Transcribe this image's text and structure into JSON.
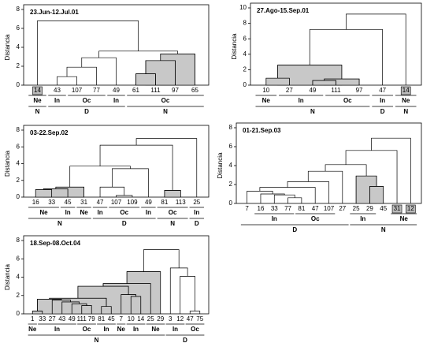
{
  "chart_data": [
    {
      "type": "dendrogram",
      "title": "23.Jun-12.Jul.01",
      "y_label": "Distancia",
      "ylim": [
        0,
        8
      ],
      "yticks": [
        0,
        2,
        4,
        6,
        8
      ],
      "leaves": [
        "14",
        "43",
        "107",
        "77",
        "49",
        "61",
        "111",
        "97",
        "65"
      ],
      "boxed": [
        0
      ],
      "merges": [
        {
          "left": 1,
          "right": 2,
          "height": 0.9,
          "shaded": false
        },
        {
          "left": 9,
          "right": 3,
          "height": 1.9,
          "shaded": false
        },
        {
          "left": 10,
          "right": 4,
          "height": 2.9,
          "shaded": false
        },
        {
          "left": 5,
          "right": 6,
          "height": 1.2,
          "shaded": true
        },
        {
          "left": 12,
          "right": 7,
          "height": 2.6,
          "shaded": true
        },
        {
          "left": 13,
          "right": 8,
          "height": 3.3,
          "shaded": true
        },
        {
          "left": 11,
          "right": 14,
          "height": 3.6,
          "shaded": false
        },
        {
          "left": 0,
          "right": 15,
          "height": 6.8,
          "shaded": false
        }
      ],
      "groups": [
        [
          {
            "label": "Ne",
            "from": 0,
            "to": 0
          },
          {
            "label": "In",
            "from": 1,
            "to": 1
          },
          {
            "label": "Oc",
            "from": 2,
            "to": 3
          },
          {
            "label": "In",
            "from": 4,
            "to": 4
          },
          {
            "label": "Oc",
            "from": 5,
            "to": 8
          }
        ],
        [
          {
            "label": "N",
            "from": 0,
            "to": 0
          },
          {
            "label": "D",
            "from": 1,
            "to": 4
          },
          {
            "label": "N",
            "from": 5,
            "to": 8
          }
        ]
      ]
    },
    {
      "type": "dendrogram",
      "title": "27.Ago-15.Sep.01",
      "y_label": "Distancia",
      "ylim": [
        0,
        10
      ],
      "yticks": [
        0,
        2,
        4,
        6,
        8,
        10
      ],
      "leaves": [
        "10",
        "27",
        "49",
        "111",
        "97",
        "47",
        "14"
      ],
      "boxed": [
        6
      ],
      "merges": [
        {
          "left": 0,
          "right": 1,
          "height": 0.9,
          "shaded": true
        },
        {
          "left": 2,
          "right": 3,
          "height": 0.6,
          "shaded": true
        },
        {
          "left": 8,
          "right": 4,
          "height": 0.8,
          "shaded": true
        },
        {
          "left": 7,
          "right": 9,
          "height": 2.6,
          "shaded": true
        },
        {
          "left": 10,
          "right": 5,
          "height": 7.2,
          "shaded": false
        },
        {
          "left": 11,
          "right": 6,
          "height": 9.2,
          "shaded": false
        }
      ],
      "groups": [
        [
          {
            "label": "Ne",
            "from": 0,
            "to": 0
          },
          {
            "label": "In",
            "from": 1,
            "to": 2
          },
          {
            "label": "Oc",
            "from": 3,
            "to": 4
          },
          {
            "label": "In",
            "from": 5,
            "to": 5
          },
          {
            "label": "Ne",
            "from": 6,
            "to": 6
          }
        ],
        [
          {
            "label": "N",
            "from": 0,
            "to": 4
          },
          {
            "label": "D",
            "from": 5,
            "to": 5
          },
          {
            "label": "N",
            "from": 6,
            "to": 6
          }
        ]
      ]
    },
    {
      "type": "dendrogram",
      "title": "03-22.Sep.02",
      "y_label": "Distancia",
      "ylim": [
        0,
        8
      ],
      "yticks": [
        0,
        2,
        4,
        6,
        8
      ],
      "leaves": [
        "16",
        "33",
        "45",
        "31",
        "47",
        "107",
        "109",
        "49",
        "81",
        "113",
        "25"
      ],
      "boxed": [],
      "merges": [
        {
          "left": 0,
          "right": 1,
          "height": 0.9,
          "shaded": true
        },
        {
          "left": 11,
          "right": 2,
          "height": 1.0,
          "shaded": true
        },
        {
          "left": 12,
          "right": 3,
          "height": 1.2,
          "shaded": true
        },
        {
          "left": 5,
          "right": 6,
          "height": 0.2,
          "shaded": false
        },
        {
          "left": 4,
          "right": 14,
          "height": 1.2,
          "shaded": false
        },
        {
          "left": 15,
          "right": 7,
          "height": 3.4,
          "shaded": false
        },
        {
          "left": 13,
          "right": 16,
          "height": 3.7,
          "shaded": false
        },
        {
          "left": 8,
          "right": 9,
          "height": 0.8,
          "shaded": true
        },
        {
          "left": 17,
          "right": 18,
          "height": 6.2,
          "shaded": false
        },
        {
          "left": 19,
          "right": 10,
          "height": 7.0,
          "shaded": false
        }
      ],
      "groups": [
        [
          {
            "label": "Ne",
            "from": 0,
            "to": 1
          },
          {
            "label": "In",
            "from": 2,
            "to": 2
          },
          {
            "label": "Ne",
            "from": 3,
            "to": 3
          },
          {
            "label": "In",
            "from": 4,
            "to": 4
          },
          {
            "label": "Oc",
            "from": 5,
            "to": 6
          },
          {
            "label": "In",
            "from": 7,
            "to": 7
          },
          {
            "label": "Oc",
            "from": 8,
            "to": 9
          },
          {
            "label": "In",
            "from": 10,
            "to": 10
          }
        ],
        [
          {
            "label": "N",
            "from": 0,
            "to": 3
          },
          {
            "label": "D",
            "from": 4,
            "to": 7
          },
          {
            "label": "N",
            "from": 8,
            "to": 9
          },
          {
            "label": "D",
            "from": 10,
            "to": 10
          }
        ]
      ]
    },
    {
      "type": "dendrogram",
      "title": "01-21.Sep.03",
      "y_label": "Distancia",
      "ylim": [
        0,
        8
      ],
      "yticks": [
        0,
        2,
        4,
        6,
        8
      ],
      "leaves": [
        "7",
        "16",
        "33",
        "77",
        "81",
        "47",
        "107",
        "27",
        "25",
        "29",
        "45",
        "31",
        "12"
      ],
      "boxed": [
        11,
        12
      ],
      "merges": [
        {
          "left": 3,
          "right": 4,
          "height": 0.6,
          "shaded": false
        },
        {
          "left": 2,
          "right": 13,
          "height": 0.9,
          "shaded": false
        },
        {
          "left": 1,
          "right": 14,
          "height": 1.0,
          "shaded": false
        },
        {
          "left": 0,
          "right": 15,
          "height": 1.3,
          "shaded": false
        },
        {
          "left": 16,
          "right": 5,
          "height": 1.7,
          "shaded": false
        },
        {
          "left": 17,
          "right": 6,
          "height": 2.3,
          "shaded": false
        },
        {
          "left": 18,
          "right": 7,
          "height": 3.4,
          "shaded": false
        },
        {
          "left": 9,
          "right": 10,
          "height": 1.8,
          "shaded": true
        },
        {
          "left": 8,
          "right": 20,
          "height": 2.9,
          "shaded": true
        },
        {
          "left": 19,
          "right": 21,
          "height": 4.1,
          "shaded": false
        },
        {
          "left": 22,
          "right": 11,
          "height": 5.6,
          "shaded": false
        },
        {
          "left": 23,
          "right": 12,
          "height": 6.9,
          "shaded": false
        }
      ],
      "groups": [
        [
          {
            "label": "In",
            "from": 1,
            "to": 3
          },
          {
            "label": "Oc",
            "from": 4,
            "to": 6
          },
          {
            "label": "In",
            "from": 8,
            "to": 9
          },
          {
            "label": "Ne",
            "from": 11,
            "to": 12
          }
        ],
        [
          {
            "label": "D",
            "from": 0,
            "to": 7
          },
          {
            "label": "N",
            "from": 8,
            "to": 12
          }
        ]
      ]
    },
    {
      "type": "dendrogram",
      "title": "18.Sep-08.Oct.04",
      "y_label": "Distancia",
      "ylim": [
        0,
        8
      ],
      "yticks": [
        0,
        2,
        4,
        6,
        8
      ],
      "leaves": [
        "1",
        "33",
        "27",
        "43",
        "49",
        "111",
        "79",
        "81",
        "45",
        "7",
        "10",
        "14",
        "25",
        "29",
        "3",
        "12",
        "47",
        "75"
      ],
      "boxed": [],
      "merges": [
        {
          "left": 0,
          "right": 1,
          "height": 0.3,
          "shaded": true
        },
        {
          "left": 5,
          "right": 6,
          "height": 0.9,
          "shaded": true
        },
        {
          "left": 4,
          "right": 19,
          "height": 1.1,
          "shaded": true
        },
        {
          "left": 3,
          "right": 20,
          "height": 1.3,
          "shaded": true
        },
        {
          "left": 2,
          "right": 21,
          "height": 1.5,
          "shaded": true
        },
        {
          "left": 18,
          "right": 22,
          "height": 1.6,
          "shaded": true
        },
        {
          "left": 7,
          "right": 8,
          "height": 0.8,
          "shaded": true
        },
        {
          "left": 23,
          "right": 24,
          "height": 1.7,
          "shaded": true
        },
        {
          "left": 10,
          "right": 11,
          "height": 1.9,
          "shaded": true
        },
        {
          "left": 9,
          "right": 26,
          "height": 2.1,
          "shaded": true
        },
        {
          "left": 25,
          "right": 27,
          "height": 3.0,
          "shaded": true
        },
        {
          "left": 28,
          "right": 12,
          "height": 3.3,
          "shaded": true
        },
        {
          "left": 29,
          "right": 13,
          "height": 4.6,
          "shaded": true
        },
        {
          "left": 16,
          "right": 17,
          "height": 0.3,
          "shaded": false
        },
        {
          "left": 15,
          "right": 31,
          "height": 4.1,
          "shaded": false
        },
        {
          "left": 14,
          "right": 32,
          "height": 5.0,
          "shaded": false
        },
        {
          "left": 30,
          "right": 33,
          "height": 7.0,
          "shaded": false
        }
      ],
      "groups": [
        [
          {
            "label": "Ne",
            "from": 0,
            "to": 0
          },
          {
            "label": "In",
            "from": 1,
            "to": 4
          },
          {
            "label": "Oc",
            "from": 5,
            "to": 6
          },
          {
            "label": "In",
            "from": 7,
            "to": 8
          },
          {
            "label": "Ne",
            "from": 9,
            "to": 9
          },
          {
            "label": "In",
            "from": 10,
            "to": 11
          },
          {
            "label": "Ne",
            "from": 12,
            "to": 13
          },
          {
            "label": "In",
            "from": 14,
            "to": 15
          },
          {
            "label": "Oc",
            "from": 16,
            "to": 17
          }
        ],
        [
          {
            "label": "N",
            "from": 0,
            "to": 13
          },
          {
            "label": "D",
            "from": 14,
            "to": 17
          }
        ]
      ]
    }
  ]
}
